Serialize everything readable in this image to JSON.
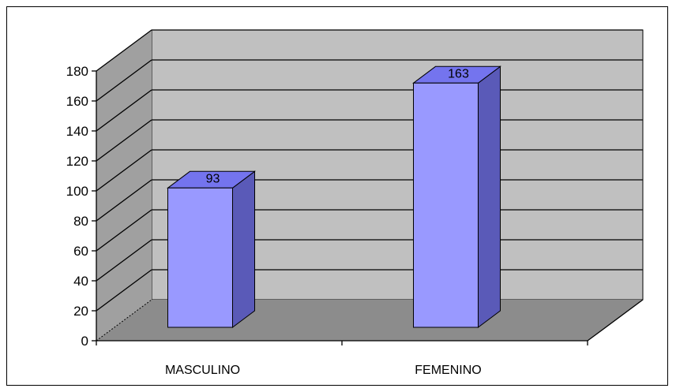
{
  "chart_data": {
    "type": "bar",
    "style": "3d-column",
    "categories": [
      "MASCULINO",
      "FEMENINO"
    ],
    "values": [
      93,
      163
    ],
    "title": "",
    "xlabel": "",
    "ylabel": "",
    "ylim": [
      0,
      180
    ],
    "yticks": [
      "0",
      "20",
      "40",
      "60",
      "80",
      "100",
      "120",
      "140",
      "160",
      "180"
    ],
    "data_labels": [
      "93",
      "163"
    ],
    "grid": true,
    "legend": "none",
    "colors": {
      "bar_front": "#9999ff",
      "bar_top": "#7474ee",
      "bar_side": "#5a5ab8",
      "back_wall": "#c0c0c0",
      "side_wall": "#a0a0a0",
      "floor": "#8c8c8c",
      "gridline": "#000000"
    }
  }
}
